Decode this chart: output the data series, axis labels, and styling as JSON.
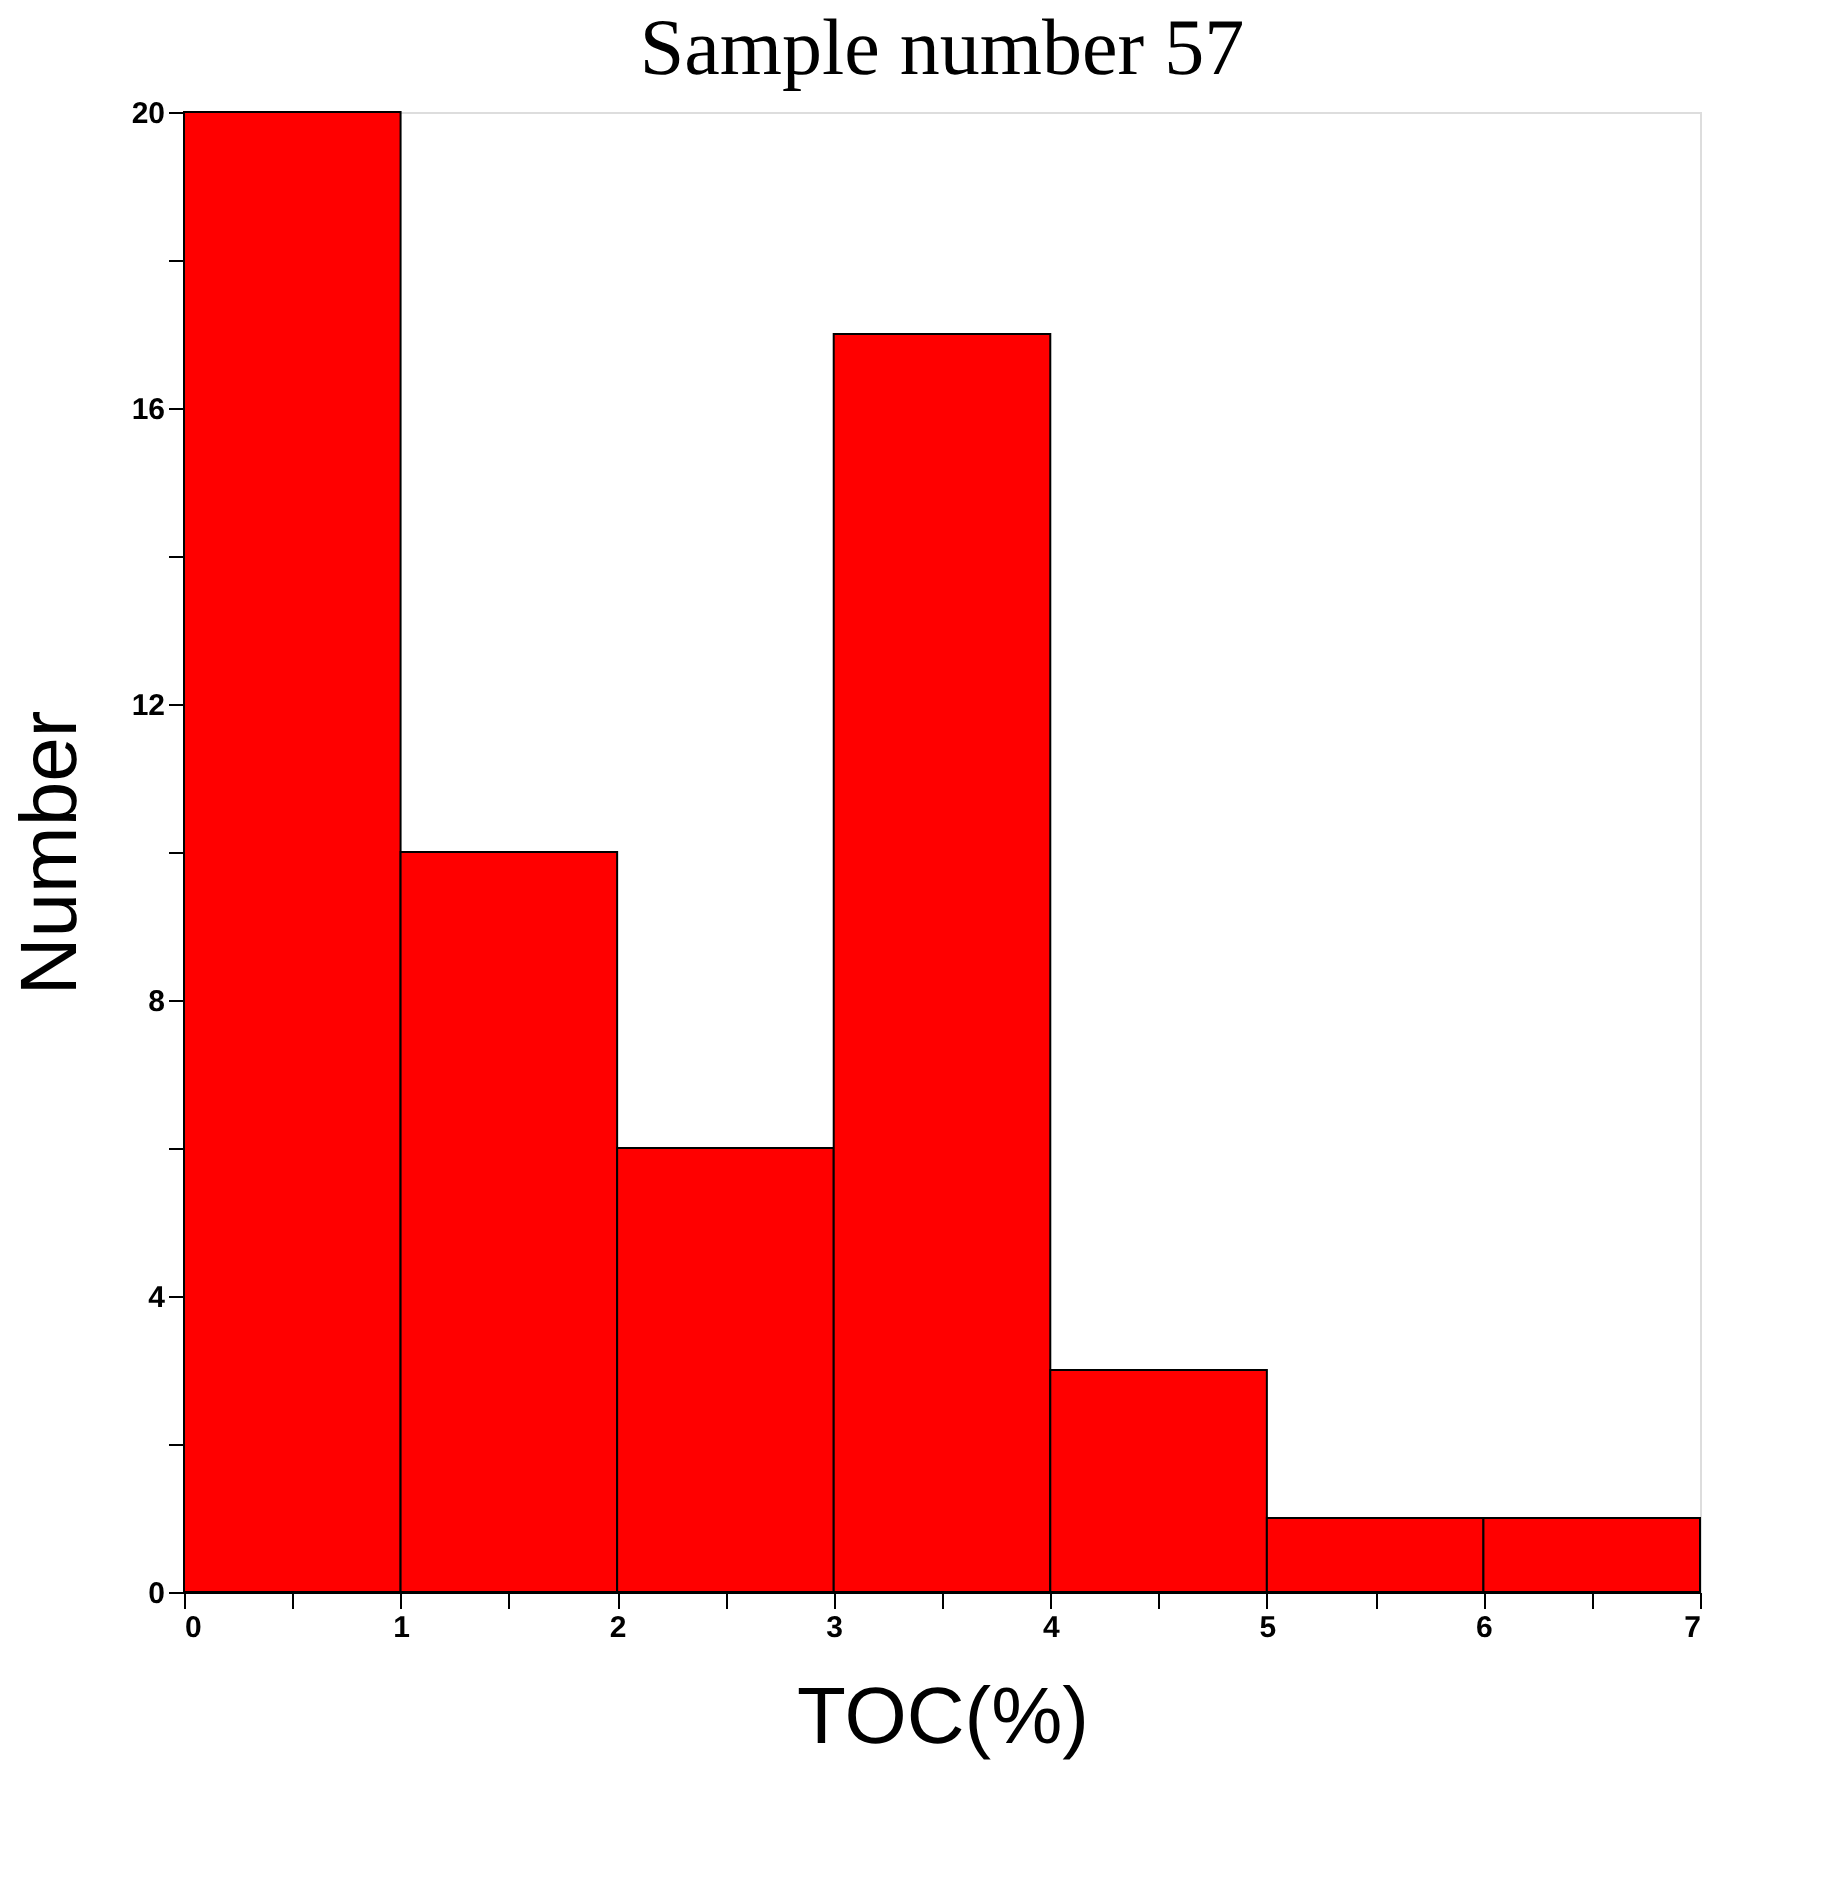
{
  "chart_data": {
    "type": "histogram",
    "title": "Sample number 57",
    "xlabel": "TOC(%)",
    "ylabel": "Number",
    "bins": [
      0,
      1,
      2,
      3,
      4,
      5,
      6,
      7
    ],
    "values": [
      20,
      10,
      6,
      17,
      3,
      1,
      1
    ],
    "color": "#ff0000",
    "xlim": [
      0,
      7
    ],
    "xticks": [
      0,
      {
        "value": 0.5,
        "label": null
      },
      1,
      {
        "value": 1.5,
        "label": null
      },
      2,
      {
        "value": 2.5,
        "label": null
      },
      3,
      {
        "value": 3.5,
        "label": null
      },
      4,
      {
        "value": 4.5,
        "label": null
      },
      5,
      {
        "value": 5.5,
        "label": null
      },
      6,
      {
        "value": 6.5,
        "label": null
      },
      7
    ],
    "ylim": [
      0,
      20
    ],
    "yticks": [
      0,
      {
        "value": 2,
        "label": null
      },
      4,
      {
        "value": 6,
        "label": null
      },
      8,
      {
        "value": 10,
        "label": null
      },
      12,
      {
        "value": 14,
        "label": null
      },
      16,
      {
        "value": 18,
        "label": null
      },
      20
    ],
    "grid": false
  }
}
